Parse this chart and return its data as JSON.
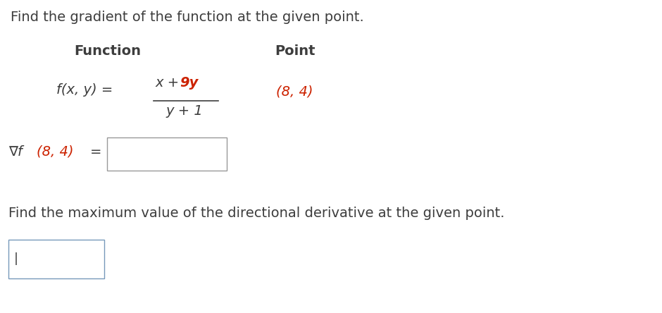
{
  "title": "Find the gradient of the function at the given point.",
  "function_header": "Function",
  "point_header": "Point",
  "func_left": "f(x, y) =",
  "func_numerator_black": "x + ",
  "func_numerator_red": "9y",
  "func_denominator": "y + 1",
  "point_value": "(8, 4)",
  "bottom_text": "Find the maximum value of the directional derivative at the given point.",
  "black_color": "#3d3d3d",
  "red_color": "#cc2200",
  "bg_color": "#ffffff",
  "box1_edge": "#999999",
  "box2_edge": "#7799bb"
}
